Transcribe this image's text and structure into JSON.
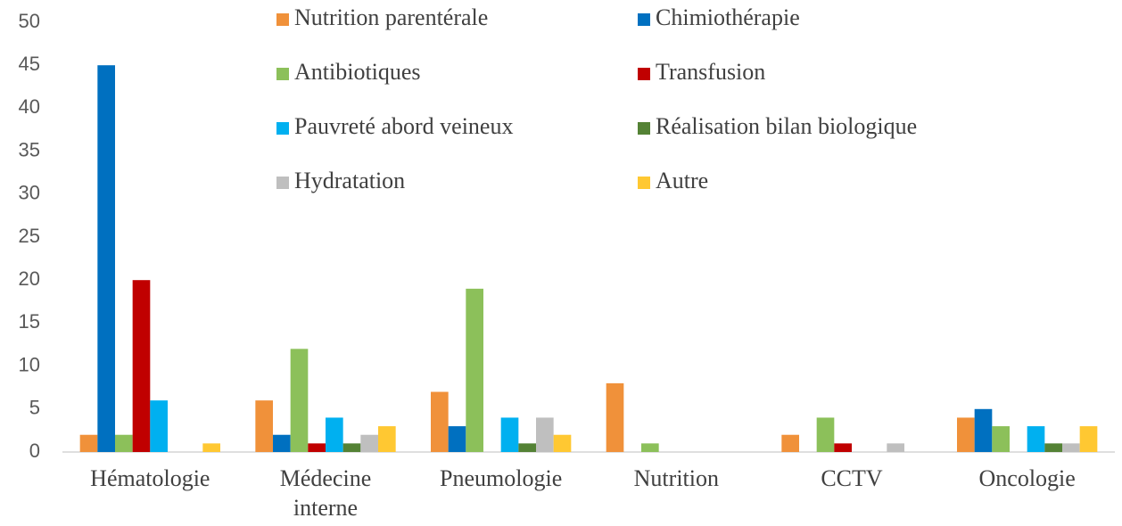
{
  "chart_data": {
    "type": "bar",
    "categories": [
      "Hématologie",
      "Médecine interne",
      "Pneumologie",
      "Nutrition",
      "CCTV",
      "Oncologie"
    ],
    "series": [
      {
        "name": "Nutrition parentérale",
        "color": "#f0913a",
        "values": [
          2,
          6,
          7,
          8,
          2,
          4
        ]
      },
      {
        "name": "Chimiothérapie",
        "color": "#0070c0",
        "values": [
          45,
          2,
          3,
          0,
          0,
          5
        ]
      },
      {
        "name": "Antibiotiques",
        "color": "#8cc05a",
        "values": [
          2,
          12,
          19,
          1,
          4,
          3
        ]
      },
      {
        "name": "Transfusion",
        "color": "#c00000",
        "values": [
          20,
          1,
          0,
          0,
          1,
          0
        ]
      },
      {
        "name": "Pauvreté abord veineux",
        "color": "#00b0f0",
        "values": [
          6,
          4,
          4,
          0,
          0,
          3
        ]
      },
      {
        "name": "Réalisation bilan biologique",
        "color": "#548235",
        "values": [
          0,
          1,
          1,
          0,
          0,
          1
        ]
      },
      {
        "name": "Hydratation",
        "color": "#bfbfbf",
        "values": [
          0,
          2,
          4,
          0,
          1,
          1
        ]
      },
      {
        "name": "Autre",
        "color": "#ffc832",
        "values": [
          1,
          3,
          2,
          0,
          0,
          3
        ]
      }
    ],
    "ylim": [
      0,
      50
    ],
    "yticks": [
      0,
      5,
      10,
      15,
      20,
      25,
      30,
      35,
      40,
      45,
      50
    ],
    "grid": false,
    "legend": "top"
  }
}
